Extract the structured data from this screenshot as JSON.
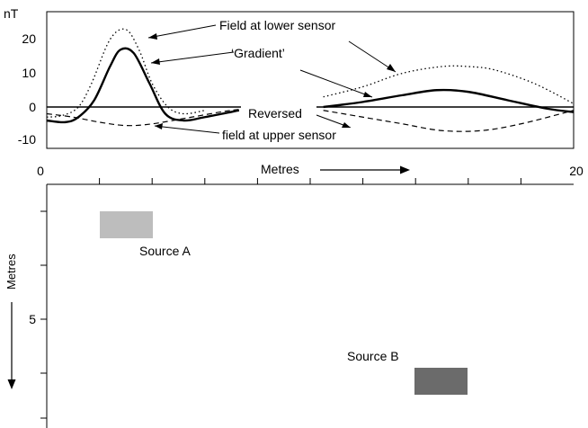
{
  "chart_data": {
    "type": "line",
    "y_unit_label": "nT",
    "y_ticks": [
      20,
      10,
      0,
      -10
    ],
    "ylim": [
      -10,
      26
    ],
    "x_ticks_top": [
      0,
      20
    ],
    "xlim": [
      0,
      20
    ],
    "x_axis_label": "Metres",
    "y_axis_label_left": "Metres",
    "y_tick_left": [
      5
    ],
    "annotations": {
      "lower_sensor": "Field at lower sensor",
      "gradient": "‘Gradient’",
      "reversed_line1": "Reversed",
      "reversed_line2": "field at upper sensor"
    },
    "series": [
      {
        "name": "Field at lower sensor",
        "style": "dotted",
        "segments": [
          {
            "x": [
              0.0,
              0.6,
              1.2,
              1.7,
              2.4,
              3.0,
              3.5,
              4.0,
              4.6,
              5.2,
              6.0
            ],
            "y": [
              -3,
              -2.5,
              0,
              7,
              20,
              23,
              17,
              7,
              0,
              -2,
              -1
            ]
          },
          {
            "x": [
              10.5,
              12.0,
              13.5,
              15.0,
              16.0,
              17.0,
              18.5,
              20.0
            ],
            "y": [
              3,
              6,
              10,
              12,
              12,
              11,
              7,
              1
            ]
          }
        ]
      },
      {
        "name": "‘Gradient’",
        "style": "solid-thick",
        "segments": [
          {
            "x": [
              0.0,
              0.7,
              1.2,
              1.8,
              2.4,
              2.8,
              3.3,
              3.9,
              4.5,
              5.2,
              6.0,
              7.3
            ],
            "y": [
              -4,
              -4.5,
              -3,
              2,
              12,
              17,
              16,
              7,
              -2,
              -4,
              -3,
              -1
            ]
          },
          {
            "x": [
              10.5,
              12.0,
              13.5,
              14.8,
              16.0,
              17.5,
              19.0,
              20.0
            ],
            "y": [
              0,
              1.5,
              3.5,
              5,
              4.5,
              2,
              -0.5,
              -1.5
            ]
          }
        ]
      },
      {
        "name": "Reversed field at upper sensor",
        "style": "dashed",
        "segments": [
          {
            "x": [
              0.0,
              1.0,
              2.0,
              3.0,
              4.0,
              5.5,
              7.0,
              8.4
            ],
            "y": [
              -2,
              -3,
              -4.5,
              -5.5,
              -5,
              -3,
              -1,
              0
            ]
          },
          {
            "x": [
              10.5,
              12.0,
              13.5,
              15.0,
              16.5,
              18.0,
              20.0
            ],
            "y": [
              -1,
              -3,
              -5,
              -7,
              -7,
              -5,
              -1
            ]
          }
        ]
      }
    ],
    "sources": [
      {
        "label": "Source A",
        "shade": "#bdbdbd"
      },
      {
        "label": "Source B",
        "shade": "#6b6b6b"
      }
    ]
  }
}
